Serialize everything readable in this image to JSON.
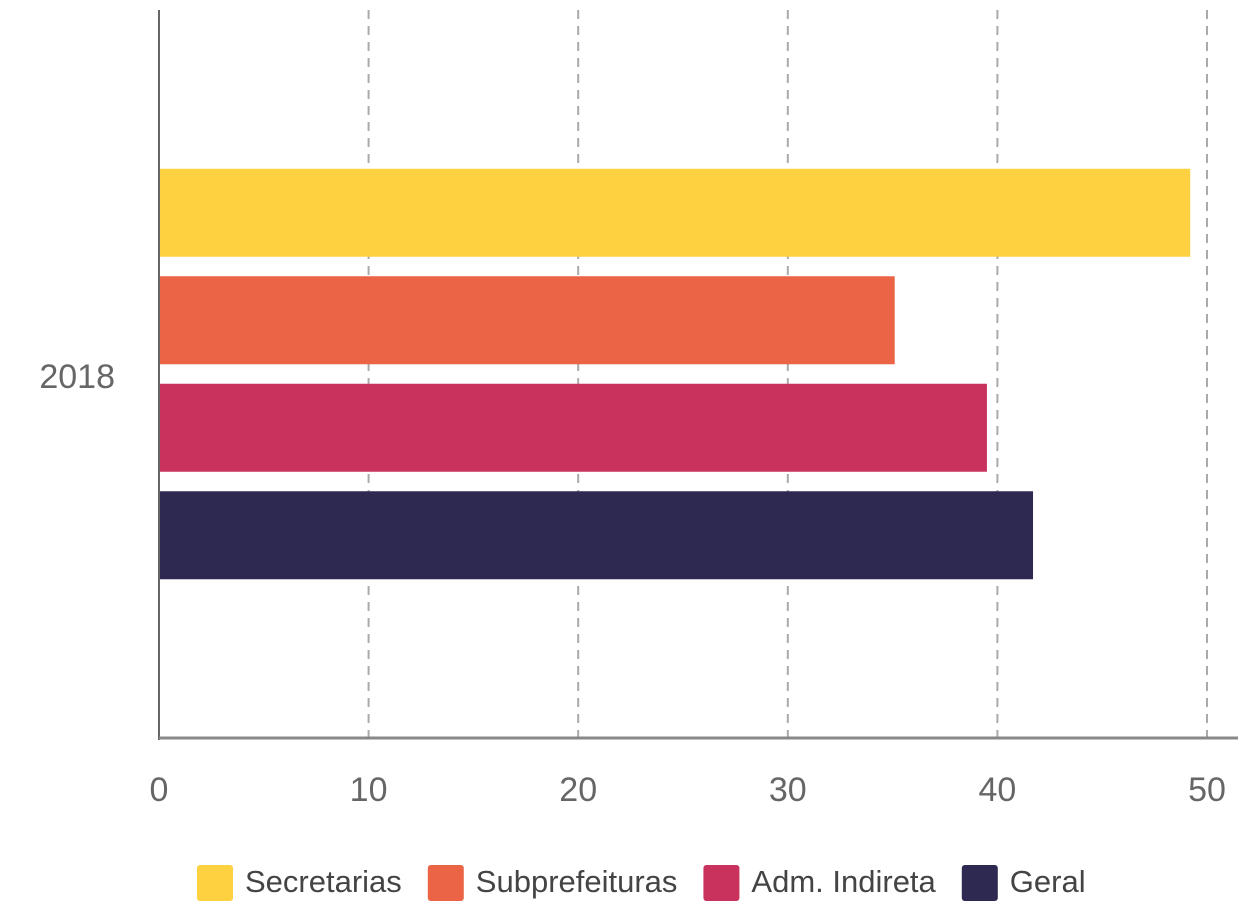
{
  "chart_data": {
    "type": "bar",
    "orientation": "horizontal",
    "categories": [
      "2018"
    ],
    "series": [
      {
        "name": "Secretarias",
        "color": "#fed141",
        "values": [
          49.2
        ]
      },
      {
        "name": "Subprefeituras",
        "color": "#ec6446",
        "values": [
          35.1
        ]
      },
      {
        "name": "Adm. Indireta",
        "color": "#c8325c",
        "values": [
          39.5
        ]
      },
      {
        "name": "Geral",
        "color": "#2e2950",
        "values": [
          41.7
        ]
      }
    ],
    "xlim": [
      0,
      50
    ],
    "xticks": [
      0,
      10,
      20,
      30,
      40,
      50
    ],
    "grid": true,
    "legend": "bottom"
  }
}
